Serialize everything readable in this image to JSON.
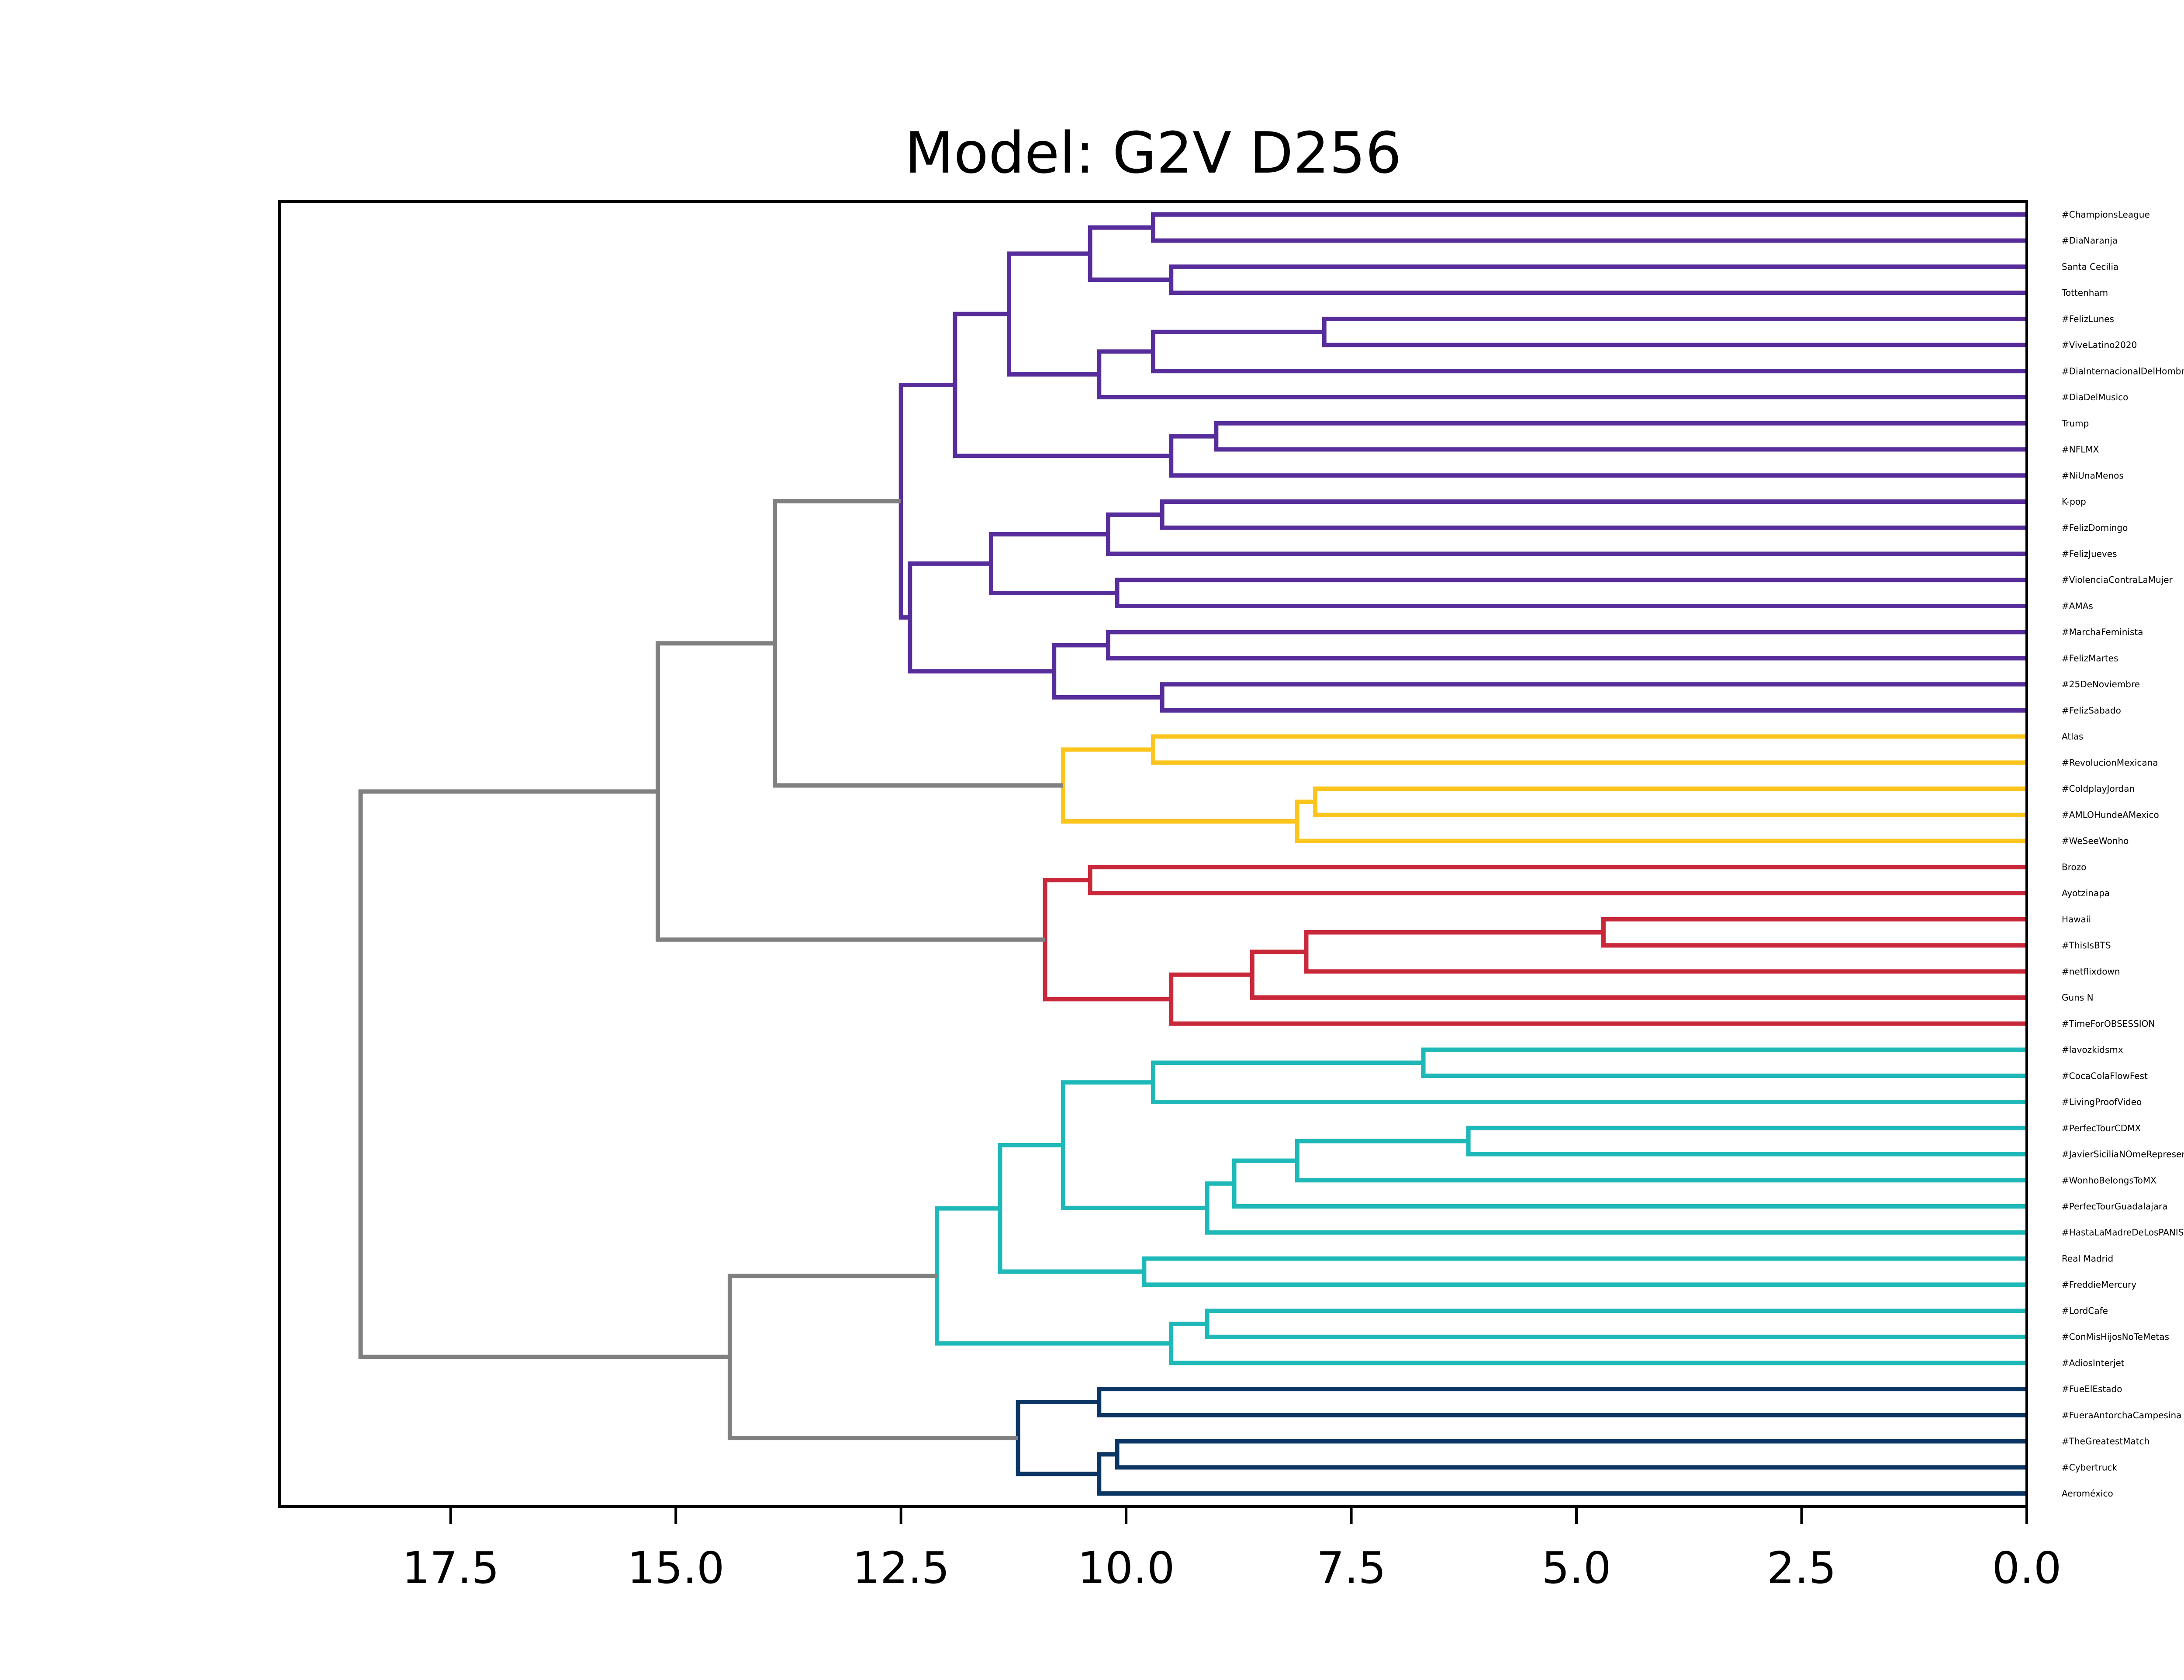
{
  "chart_data": {
    "type": "dendrogram",
    "title": "Model: G2V D256",
    "orientation": "left",
    "xlim": [
      19.4,
      0.0
    ],
    "xticks": [
      17.5,
      15.0,
      12.5,
      10.0,
      7.5,
      5.0,
      2.5,
      0.0
    ],
    "xtick_labels": [
      "17.5",
      "15.0",
      "12.5",
      "10.0",
      "7.5",
      "5.0",
      "2.5",
      "0.0"
    ],
    "colors": {
      "above_threshold": "#808080",
      "purple": "#562d9a",
      "yellow": "#fcc51d",
      "red": "#c8283a",
      "teal": "#1eb8b8",
      "navy": "#0b3563"
    },
    "leaves": [
      "#ChampionsLeague",
      "#DiaNaranja",
      "Santa Cecilia",
      "Tottenham",
      "#FelizLunes",
      "#ViveLatino2020",
      "#DiaInternacionalDelHombre",
      "#DiaDelMusico",
      "Trump",
      "#NFLMX",
      "#NiUnaMenos",
      "K-pop",
      "#FelizDomingo",
      "#FelizJueves",
      "#ViolenciaContraLaMujer",
      "#AMAs",
      "#MarchaFeminista",
      "#FelizMartes",
      "#25DeNoviembre",
      "#FelizSabado",
      "Atlas",
      "#RevolucionMexicana",
      "#ColdplayJordan",
      "#AMLOHundeAMexico",
      "#WeSeeWonho",
      "Brozo",
      "Ayotzinapa",
      "Hawaii",
      "#ThisIsBTS",
      "#netflixdown",
      "Guns N",
      "#TimeForOBSESSION",
      "#lavozkidsmx",
      "#CocaColaFlowFest",
      "#LivingProofVideo",
      "#PerfecTourCDMX",
      "#JavierSiciliaNOmeRepresenta",
      "#WonhoBelongsToMX",
      "#PerfecTourGuadalajara",
      "#HastaLaMadreDeLosPANISTAS",
      "Real Madrid",
      "#FreddieMercury",
      "#LordCafe",
      "#ConMisHijosNoTeMetas",
      "#AdiosInterjet",
      "#FueElEstado",
      "#FueraAntorchaCampesina",
      "#TheGreatestMatch",
      "#Cybertruck",
      "Aeroméxico"
    ],
    "merges": [
      {
        "a": 0,
        "b": 1,
        "height": 9.7,
        "color": "purple"
      },
      {
        "a": 2,
        "b": 3,
        "height": 9.5,
        "color": "purple"
      },
      {
        "a": "m0",
        "b": "m1",
        "height": 10.4,
        "color": "purple"
      },
      {
        "a": 4,
        "b": 5,
        "height": 7.8,
        "color": "purple"
      },
      {
        "a": "m3",
        "b": 6,
        "height": 9.7,
        "color": "purple"
      },
      {
        "a": "m4",
        "b": 7,
        "height": 10.3,
        "color": "purple"
      },
      {
        "a": "m2",
        "b": "m5",
        "height": 11.3,
        "color": "purple"
      },
      {
        "a": 8,
        "b": 9,
        "height": 9.0,
        "color": "purple"
      },
      {
        "a": "m7",
        "b": 10,
        "height": 9.5,
        "color": "purple"
      },
      {
        "a": "m6",
        "b": "m8",
        "height": 11.9,
        "color": "purple"
      },
      {
        "a": 11,
        "b": 12,
        "height": 9.6,
        "color": "purple"
      },
      {
        "a": "m10",
        "b": 13,
        "height": 10.2,
        "color": "purple"
      },
      {
        "a": 14,
        "b": 15,
        "height": 10.1,
        "color": "purple"
      },
      {
        "a": "m11",
        "b": "m12",
        "height": 11.5,
        "color": "purple"
      },
      {
        "a": 16,
        "b": 17,
        "height": 10.2,
        "color": "purple"
      },
      {
        "a": 18,
        "b": 19,
        "height": 9.6,
        "color": "purple"
      },
      {
        "a": "m14",
        "b": "m15",
        "height": 10.8,
        "color": "purple"
      },
      {
        "a": "m13",
        "b": "m16",
        "height": 12.4,
        "color": "purple"
      },
      {
        "a": "m9",
        "b": "m17",
        "height": 12.5,
        "color": "purple"
      },
      {
        "a": 20,
        "b": 21,
        "height": 9.7,
        "color": "yellow"
      },
      {
        "a": 22,
        "b": 23,
        "height": 7.9,
        "color": "yellow"
      },
      {
        "a": "m20",
        "b": 24,
        "height": 8.1,
        "color": "yellow"
      },
      {
        "a": "m19",
        "b": "m21",
        "height": 10.7,
        "color": "yellow"
      },
      {
        "a": "m18",
        "b": "m22",
        "height": 13.9,
        "color": "above_threshold"
      },
      {
        "a": 25,
        "b": 26,
        "height": 10.4,
        "color": "red"
      },
      {
        "a": 27,
        "b": 28,
        "height": 4.7,
        "color": "red"
      },
      {
        "a": "m25",
        "b": 29,
        "height": 8.0,
        "color": "red"
      },
      {
        "a": "m26",
        "b": 30,
        "height": 8.6,
        "color": "red"
      },
      {
        "a": "m27",
        "b": 31,
        "height": 9.5,
        "color": "red"
      },
      {
        "a": "m24",
        "b": "m28",
        "height": 10.9,
        "color": "red"
      },
      {
        "a": "m23",
        "b": "m29",
        "height": 15.2,
        "color": "above_threshold"
      },
      {
        "a": 32,
        "b": 33,
        "height": 6.7,
        "color": "teal"
      },
      {
        "a": "m31",
        "b": 34,
        "height": 9.7,
        "color": "teal"
      },
      {
        "a": 35,
        "b": 36,
        "height": 6.2,
        "color": "teal"
      },
      {
        "a": "m33",
        "b": 37,
        "height": 8.1,
        "color": "teal"
      },
      {
        "a": "m34",
        "b": 38,
        "height": 8.8,
        "color": "teal"
      },
      {
        "a": "m35",
        "b": 39,
        "height": 9.1,
        "color": "teal"
      },
      {
        "a": "m32",
        "b": "m36",
        "height": 10.7,
        "color": "teal"
      },
      {
        "a": 40,
        "b": 41,
        "height": 9.8,
        "color": "teal"
      },
      {
        "a": "m37",
        "b": "m38",
        "height": 11.4,
        "color": "teal"
      },
      {
        "a": 42,
        "b": 43,
        "height": 9.1,
        "color": "teal"
      },
      {
        "a": "m40",
        "b": 44,
        "height": 9.5,
        "color": "teal"
      },
      {
        "a": "m39",
        "b": "m41",
        "height": 12.1,
        "color": "teal"
      },
      {
        "a": 45,
        "b": 46,
        "height": 10.3,
        "color": "navy"
      },
      {
        "a": 47,
        "b": 48,
        "height": 10.1,
        "color": "navy"
      },
      {
        "a": "m44",
        "b": 49,
        "height": 10.3,
        "color": "navy"
      },
      {
        "a": "m43",
        "b": "m45",
        "height": 11.2,
        "color": "navy"
      },
      {
        "a": "m42",
        "b": "m46",
        "height": 14.4,
        "color": "above_threshold"
      },
      {
        "a": "m30",
        "b": "m47",
        "height": 18.5,
        "color": "above_threshold"
      }
    ]
  }
}
